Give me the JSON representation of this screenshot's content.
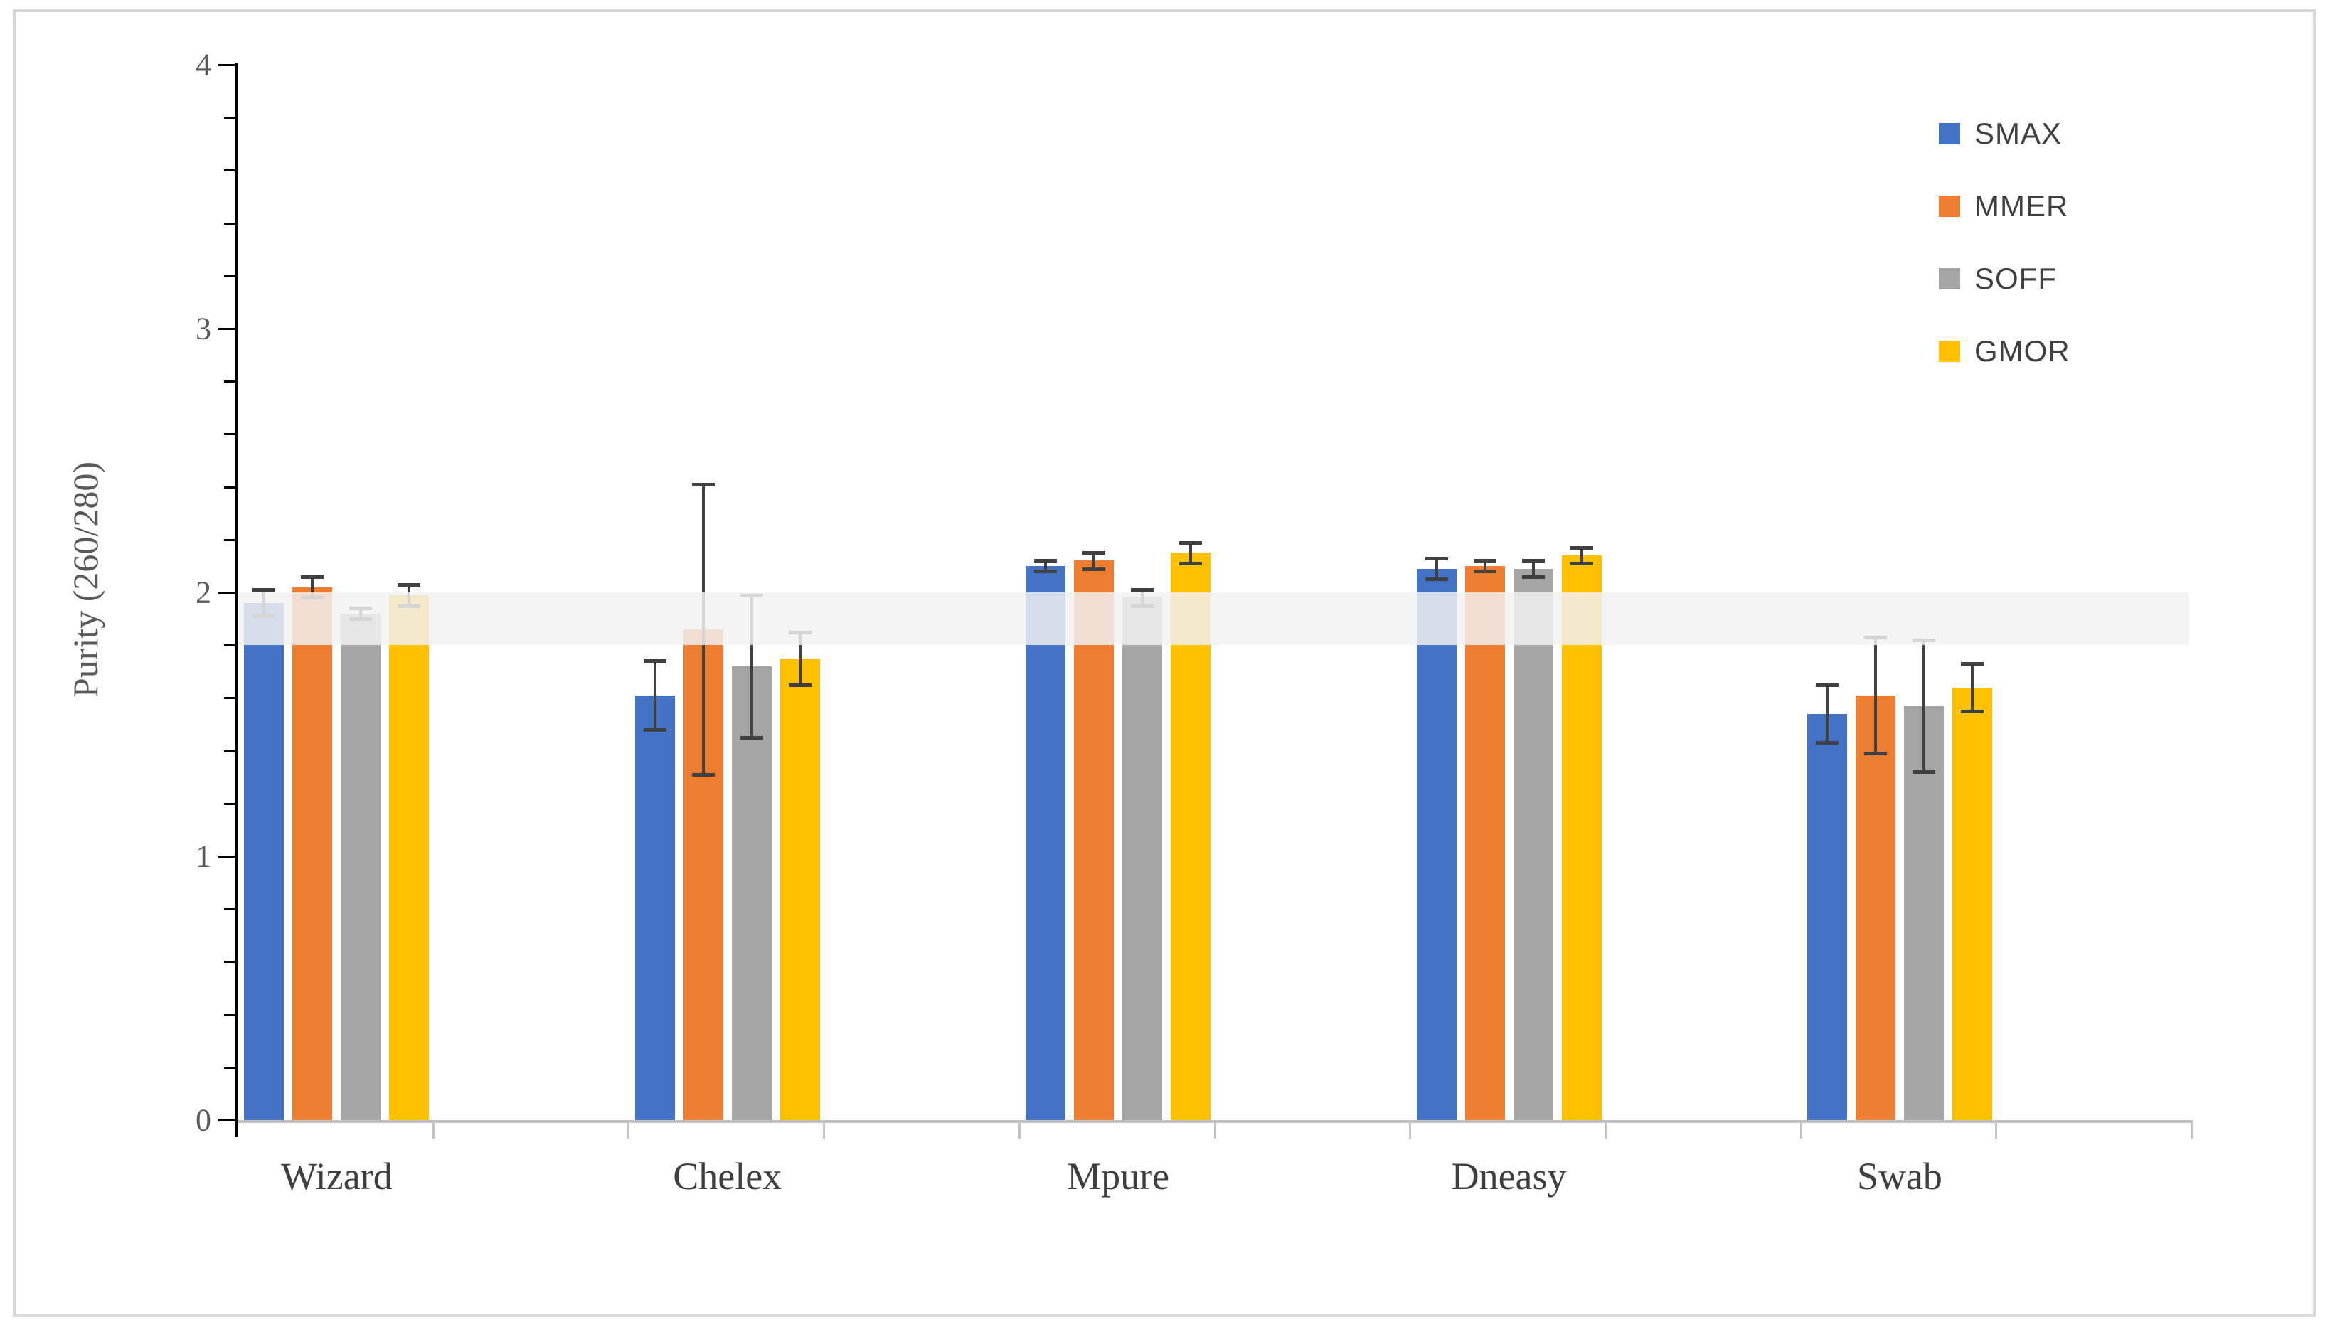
{
  "figure": {
    "background": "#ffffff",
    "border_color": "#d8d8d8"
  },
  "chart_data": {
    "type": "bar",
    "title": "",
    "xlabel": "",
    "ylabel": "Purity (260/280)",
    "ylim": [
      0,
      4
    ],
    "ytick_labels": [
      "0",
      "1",
      "2",
      "3",
      "4"
    ],
    "ytick_values": [
      0,
      1,
      2,
      3,
      4
    ],
    "ytick_minor_step": 0.2,
    "grid": false,
    "legend_position": "top-right",
    "categories": [
      "Wizard",
      "Chelex",
      "Mpure",
      "Dneasy",
      "Swab"
    ],
    "series": [
      {
        "name": "SMAX",
        "color": "#4472c4",
        "values": [
          1.96,
          1.61,
          2.1,
          2.09,
          1.54
        ],
        "errors": [
          0.05,
          0.13,
          0.02,
          0.04,
          0.11
        ]
      },
      {
        "name": "MMER",
        "color": "#ed7d31",
        "values": [
          2.02,
          1.86,
          2.12,
          2.1,
          1.61
        ],
        "errors": [
          0.04,
          0.55,
          0.03,
          0.02,
          0.22
        ]
      },
      {
        "name": "SOFF",
        "color": "#a5a5a5",
        "values": [
          1.92,
          1.72,
          1.98,
          2.09,
          1.57
        ],
        "errors": [
          0.02,
          0.27,
          0.03,
          0.03,
          0.25
        ]
      },
      {
        "name": "GMOR",
        "color": "#ffc000",
        "values": [
          1.99,
          1.75,
          2.15,
          2.14,
          1.64
        ],
        "errors": [
          0.04,
          0.1,
          0.04,
          0.03,
          0.09
        ]
      }
    ],
    "error_bar_color": "#404040",
    "reference_band": {
      "from": 1.8,
      "to": 2.0,
      "color": "242,242,242",
      "opacity": 0.84
    },
    "axis_colors": {
      "y_axis": "#000000",
      "x_axis": "#c3c3c3",
      "tick_label": "#595959",
      "category_label": "#3f3f3f",
      "legend_label": "#404040"
    }
  }
}
